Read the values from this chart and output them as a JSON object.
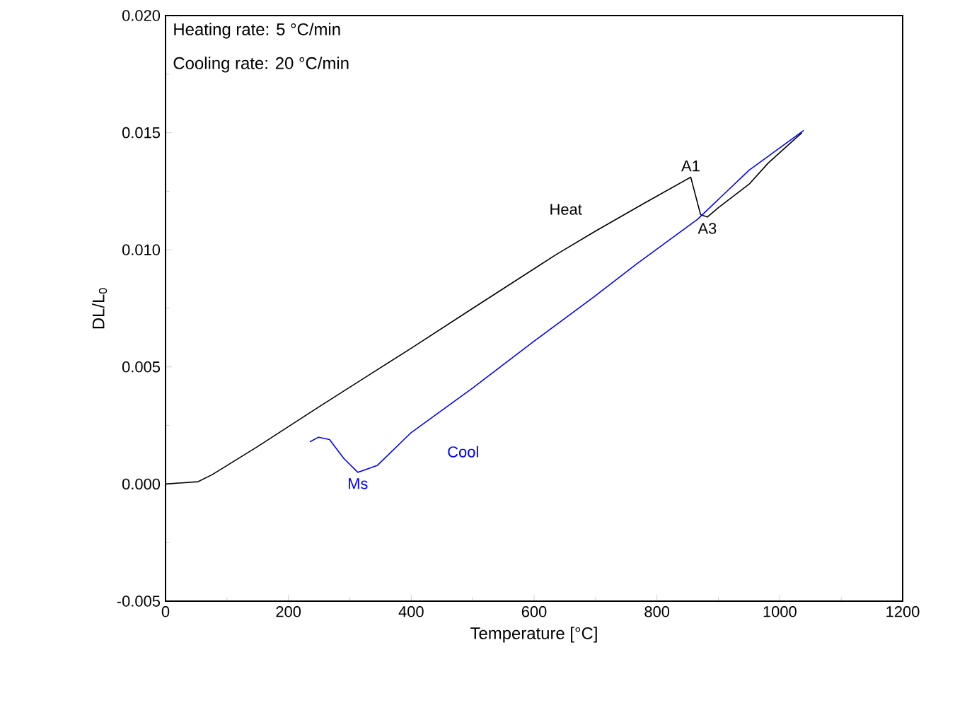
{
  "chart_data": {
    "type": "line",
    "xlabel": "Temperature [°C]",
    "ylabel": "DL/L$_{0}$",
    "xlim": [
      0,
      1200
    ],
    "xticks": [
      0,
      200,
      400,
      600,
      800,
      1000,
      1200
    ],
    "ylim": [
      -0.005,
      0.02
    ],
    "yticks": [
      {
        "value": -0.005,
        "label": "-0.005"
      },
      {
        "value": 0,
        "label": "0.000"
      },
      {
        "value": 0.005,
        "label": "0.005"
      },
      {
        "value": 0.01,
        "label": "0.010"
      },
      {
        "value": 0.015,
        "label": "0.015"
      },
      {
        "value": 0.02,
        "label": "0.020"
      }
    ],
    "annotations": [
      "Heating rate: 5 °C/min",
      "Cooling rate: 20 °C/min",
      {
        "text": "A1",
        "x": 855,
        "y": 0.0131
      },
      {
        "text": "A3",
        "x": 882,
        "y": 0.0114
      },
      {
        "text": "Ms",
        "x": 313,
        "y": 0.0005
      }
    ],
    "series": [
      {
        "name": "Heat",
        "color": "#000000",
        "x": [
          0,
          53,
          76,
          150,
          250,
          400,
          500,
          636,
          700,
          780,
          855,
          871,
          882,
          900,
          950,
          981,
          1036
        ],
        "values": [
          0,
          0.0001,
          0.0004,
          0.0016,
          0.0033,
          0.0058,
          0.0075,
          0.0098,
          0.0108,
          0.012,
          0.0131,
          0.0115,
          0.0114,
          0.0118,
          0.0128,
          0.0137,
          0.015
        ]
      },
      {
        "name": "Cool",
        "color": "#0000ff",
        "x": [
          1039,
          950,
          866,
          767,
          698,
          600,
          500,
          400,
          345,
          313,
          290,
          267,
          249,
          235
        ],
        "values": [
          0.0151,
          0.0134,
          0.0113,
          0.0094,
          0.008,
          0.0061,
          0.0041,
          0.0022,
          0.0008,
          0.0005,
          0.0011,
          0.0019,
          0.002,
          0.0018
        ]
      }
    ]
  }
}
